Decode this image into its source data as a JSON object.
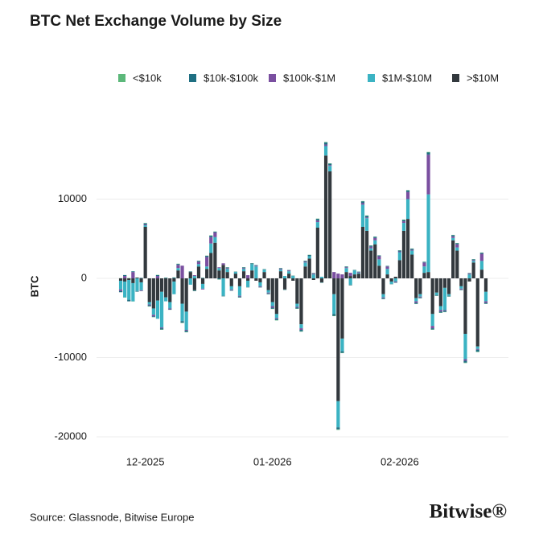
{
  "chart_data": {
    "type": "stacked_bar",
    "title": "BTC Net Exchange Volume by Size",
    "y_label": "BTC",
    "source": "Source: Glassnode, Bitwise Europe",
    "brand": "Bitwise®",
    "legend": "top",
    "grid": true,
    "ylim": [
      -21000,
      18000
    ],
    "yticks": [
      -20000,
      -10000,
      0,
      10000
    ],
    "stack_order": [
      4,
      3,
      2,
      1,
      0
    ],
    "categories": [
      null,
      null,
      null,
      null,
      null,
      null,
      "12-2025",
      null,
      null,
      null,
      null,
      null,
      null,
      null,
      null,
      null,
      null,
      null,
      null,
      null,
      null,
      null,
      null,
      null,
      null,
      null,
      null,
      null,
      null,
      null,
      null,
      null,
      null,
      null,
      null,
      null,
      null,
      "01-2026",
      null,
      null,
      null,
      null,
      null,
      null,
      null,
      null,
      null,
      null,
      null,
      null,
      null,
      null,
      null,
      null,
      null,
      null,
      null,
      null,
      null,
      null,
      null,
      null,
      null,
      null,
      null,
      null,
      null,
      null,
      "02-2026",
      null,
      null,
      null,
      null,
      null,
      null,
      null,
      null,
      null,
      null,
      null,
      null,
      null,
      null,
      null,
      null,
      null,
      null,
      null,
      null,
      null
    ],
    "series": [
      {
        "name": "<$10k",
        "color": "#5cb87a",
        "values": [
          20,
          -30,
          40,
          -20,
          10,
          -10,
          30,
          -40,
          -20,
          30,
          -30,
          20,
          -10,
          20,
          30,
          -40,
          -30,
          10,
          -20,
          20,
          10,
          30,
          40,
          20,
          -30,
          -10,
          20,
          -10,
          10,
          -20,
          20,
          -10,
          20,
          10,
          -10,
          10,
          -20,
          -30,
          -40,
          20,
          -10,
          10,
          10,
          -30,
          -40,
          20,
          30,
          10,
          40,
          -10,
          50,
          40,
          -50,
          -60,
          -40,
          20,
          -10,
          10,
          10,
          40,
          40,
          30,
          30,
          20,
          -20,
          10,
          -10,
          -10,
          30,
          40,
          40,
          30,
          -30,
          -20,
          20,
          60,
          -30,
          -20,
          -30,
          -30,
          -20,
          30,
          30,
          -10,
          -50,
          10,
          20,
          -50,
          30,
          -20
        ]
      },
      {
        "name": "$10k-$100k",
        "color": "#1f6f82",
        "values": [
          -150,
          120,
          -200,
          90,
          -80,
          60,
          150,
          -120,
          -90,
          110,
          -160,
          80,
          -60,
          100,
          120,
          -200,
          -180,
          70,
          -90,
          110,
          60,
          140,
          180,
          90,
          -130,
          -70,
          80,
          -60,
          50,
          -110,
          90,
          -40,
          100,
          70,
          -50,
          60,
          -90,
          -140,
          -170,
          80,
          -60,
          50,
          40,
          -120,
          -190,
          110,
          150,
          60,
          200,
          -50,
          250,
          180,
          -220,
          -260,
          -200,
          90,
          -70,
          60,
          50,
          220,
          200,
          130,
          150,
          90,
          -110,
          70,
          -40,
          -50,
          120,
          180,
          200,
          140,
          -120,
          -100,
          80,
          300,
          -160,
          -90,
          -130,
          -140,
          -80,
          160,
          140,
          -70,
          -240,
          60,
          110,
          -260,
          130,
          -110
        ]
      },
      {
        "name": "$100k-$1M",
        "color": "#7a4fa0",
        "values": [
          -200,
          300,
          0,
          800,
          0,
          -100,
          100,
          -100,
          -200,
          300,
          -100,
          0,
          -100,
          0,
          400,
          1600,
          -100,
          0,
          100,
          300,
          -100,
          1200,
          800,
          600,
          100,
          200,
          100,
          -100,
          0,
          -100,
          100,
          400,
          0,
          100,
          -100,
          0,
          -100,
          -200,
          -100,
          100,
          0,
          100,
          0,
          -100,
          -200,
          100,
          0,
          100,
          200,
          0,
          200,
          100,
          800,
          600,
          500,
          100,
          400,
          0,
          100,
          200,
          100,
          200,
          300,
          400,
          -100,
          300,
          0,
          -100,
          100,
          200,
          900,
          100,
          -200,
          -100,
          500,
          5000,
          -300,
          0,
          -200,
          -100,
          0,
          200,
          400,
          -100,
          -200,
          100,
          100,
          -100,
          900,
          -200
        ]
      },
      {
        "name": "$1M-$10M",
        "color": "#3bb3c3",
        "values": [
          -1100,
          -2000,
          -2500,
          -2300,
          -1600,
          -1000,
          200,
          -300,
          -800,
          -2300,
          -4500,
          -500,
          -800,
          -1600,
          300,
          -2200,
          -2300,
          -800,
          300,
          300,
          -600,
          300,
          1200,
          700,
          300,
          -2200,
          400,
          -400,
          200,
          -1200,
          300,
          -800,
          800,
          1500,
          -500,
          300,
          -300,
          -500,
          -500,
          200,
          300,
          300,
          300,
          -400,
          -500,
          500,
          300,
          500,
          700,
          200,
          1200,
          700,
          -2500,
          -3300,
          -1600,
          500,
          -800,
          500,
          100,
          2800,
          1600,
          300,
          500,
          800,
          -400,
          700,
          -300,
          -400,
          1000,
          1000,
          2500,
          500,
          -400,
          -300,
          800,
          9800,
          -1500,
          -300,
          -500,
          -2800,
          -200,
          300,
          400,
          -300,
          -3200,
          500,
          200,
          -300,
          1100,
          -1200
        ]
      },
      {
        "name": ">$10M",
        "color": "#33393e",
        "values": [
          -300,
          -400,
          -200,
          -600,
          100,
          -500,
          6500,
          -3000,
          -3800,
          -2800,
          -1700,
          -2400,
          -3000,
          -400,
          1000,
          -3200,
          -4200,
          800,
          -1500,
          1500,
          -700,
          1200,
          3200,
          4500,
          1000,
          1700,
          800,
          -1000,
          600,
          -1000,
          900,
          -300,
          1000,
          -300,
          -500,
          800,
          -1500,
          -3000,
          -4500,
          900,
          -1400,
          600,
          -300,
          -3200,
          -5800,
          1500,
          2500,
          -200,
          6400,
          -500,
          15500,
          13500,
          -2000,
          -15500,
          -7600,
          800,
          300,
          500,
          600,
          6500,
          6000,
          3500,
          4300,
          1600,
          -2000,
          500,
          -400,
          200,
          2300,
          6000,
          7500,
          3000,
          -2500,
          -2000,
          700,
          800,
          -4500,
          -1800,
          -3500,
          -1200,
          -2000,
          4800,
          3500,
          -1000,
          -7000,
          -400,
          2000,
          -8600,
          1100,
          -1700
        ]
      }
    ]
  }
}
